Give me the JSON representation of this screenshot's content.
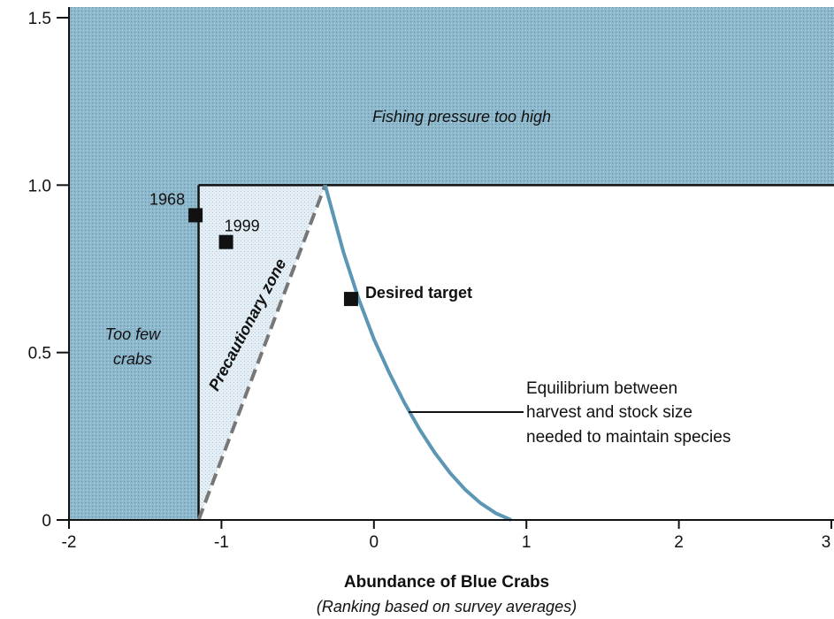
{
  "chart_data": {
    "type": "scatter",
    "title": "",
    "xlabel": "Abundance of Blue Crabs",
    "xlabel_sub": "(Ranking based on survey averages)",
    "ylabel": "",
    "xlim": [
      -2,
      3
    ],
    "ylim": [
      0,
      1.5
    ],
    "x_ticks": [
      -2,
      -1,
      0,
      1,
      2,
      3
    ],
    "x_tick_labels": [
      "-2",
      "-1",
      "0",
      "1",
      "2",
      "3"
    ],
    "y_ticks": [
      0,
      0.5,
      1.0,
      1.5
    ],
    "y_tick_labels": [
      "0",
      "0.5",
      "1.0",
      "1.5"
    ],
    "grid": false,
    "regions": [
      {
        "name": "Fishing pressure too high",
        "label": "Fishing pressure too high",
        "color": "#8cb4c8"
      },
      {
        "name": "Too few crabs",
        "label": "Too few\ncrabs",
        "color": "#8cb4c8"
      },
      {
        "name": "Precautionary zone",
        "label": "Precautionary zone",
        "color": "#dbe8f0"
      }
    ],
    "thresholds": {
      "abundance_limit": -1.15,
      "pressure_limit": 1.0
    },
    "precautionary_line": {
      "x": [
        -1.15,
        -0.32
      ],
      "y": [
        0,
        1.0
      ],
      "style": "dashed",
      "color": "#777777"
    },
    "equilibrium_curve": {
      "name": "Equilibrium between harvest and stock size needed to maintain species",
      "color": "#5b96b4",
      "x": [
        -0.32,
        -0.2,
        -0.1,
        0.0,
        0.1,
        0.2,
        0.3,
        0.4,
        0.5,
        0.6,
        0.7,
        0.8,
        0.9
      ],
      "y": [
        1.0,
        0.8,
        0.66,
        0.54,
        0.44,
        0.35,
        0.27,
        0.2,
        0.14,
        0.09,
        0.05,
        0.02,
        0.0
      ]
    },
    "points": [
      {
        "label": "1968",
        "x": -1.17,
        "y": 0.91
      },
      {
        "label": "1999",
        "x": -0.97,
        "y": 0.83
      },
      {
        "label": "Desired target",
        "x": -0.15,
        "y": 0.66
      }
    ],
    "annotations": [
      {
        "text": "Equilibrium between",
        "line": 1
      },
      {
        "text": "harvest and stock size",
        "line": 2
      },
      {
        "text": "needed to maintain species",
        "line": 3
      }
    ]
  }
}
